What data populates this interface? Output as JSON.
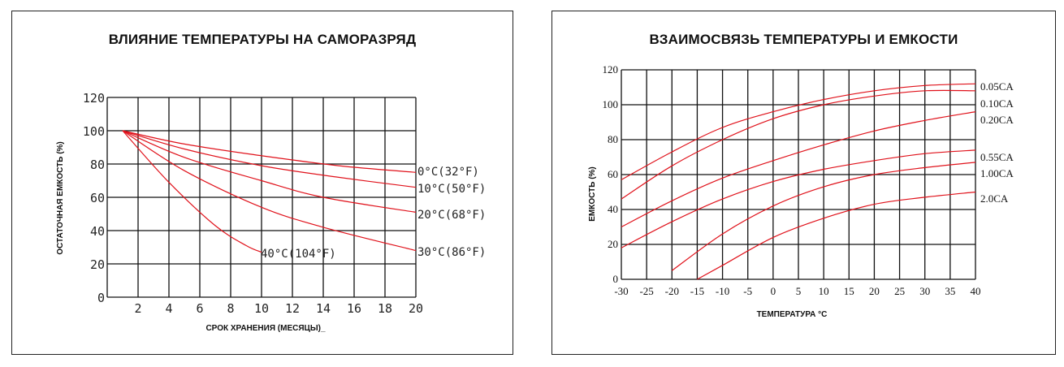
{
  "chart_data": [
    {
      "type": "line",
      "title": "ВЛИЯНИЕ ТЕМПЕРАТУРЫ НА САМОРАЗРЯД",
      "xlabel": "СРОК ХРАНЕНИЯ (МЕСЯЦЫ)_",
      "ylabel": "ОСТАТОЧНАЯ ЕМКОСТЬ (%)",
      "xlim": [
        0,
        20
      ],
      "ylim": [
        0,
        120
      ],
      "xticks": [
        2,
        4,
        6,
        8,
        10,
        12,
        14,
        16,
        18,
        20
      ],
      "yticks": [
        0,
        20,
        40,
        60,
        80,
        100,
        120
      ],
      "grid": true,
      "series": [
        {
          "name": "0°C(32°F)",
          "x": [
            1,
            5,
            10,
            15,
            20
          ],
          "y": [
            100,
            92,
            85,
            79,
            75
          ]
        },
        {
          "name": "10°C(50°F)",
          "x": [
            1,
            5,
            10,
            15,
            20
          ],
          "y": [
            100,
            89,
            79,
            72,
            66
          ]
        },
        {
          "name": "20°C(68°F)",
          "x": [
            1,
            5,
            10,
            14,
            20
          ],
          "y": [
            100,
            84,
            70,
            60,
            51
          ]
        },
        {
          "name": "30°C(86°F)",
          "x": [
            1,
            5,
            10,
            14,
            20
          ],
          "y": [
            100,
            76,
            54,
            42,
            28
          ]
        },
        {
          "name": "40°C(104°F)",
          "x": [
            1,
            4,
            7,
            9,
            10
          ],
          "y": [
            100,
            69,
            43,
            31,
            27
          ]
        }
      ]
    },
    {
      "type": "line",
      "title": "ВЗАИМОСВЯЗЬ ТЕМПЕРАТУРЫ И ЕМКОСТИ",
      "xlabel": "ТЕМПЕРАТУРА °C",
      "ylabel": "ЕМКОСТЬ (%)",
      "xlim": [
        -30,
        40
      ],
      "ylim": [
        0,
        120
      ],
      "xticks": [
        -30,
        -25,
        -20,
        -15,
        -10,
        -5,
        0,
        5,
        10,
        15,
        20,
        25,
        30,
        35,
        40
      ],
      "yticks": [
        0,
        20,
        40,
        60,
        80,
        100,
        120
      ],
      "grid": true,
      "series": [
        {
          "name": "0.05CA",
          "x": [
            -30,
            -20,
            -10,
            0,
            10,
            20,
            30,
            40
          ],
          "y": [
            57,
            73,
            87,
            96,
            103,
            108,
            111,
            112
          ]
        },
        {
          "name": "0.10CA",
          "x": [
            -30,
            -20,
            -10,
            0,
            10,
            20,
            30,
            40
          ],
          "y": [
            46,
            65,
            80,
            92,
            100,
            105,
            108,
            108
          ]
        },
        {
          "name": "0.20CA",
          "x": [
            -30,
            -20,
            -10,
            0,
            10,
            20,
            30,
            40
          ],
          "y": [
            30,
            45,
            58,
            68,
            77,
            85,
            91,
            96
          ]
        },
        {
          "name": "0.55CA",
          "x": [
            -30,
            -20,
            -10,
            0,
            10,
            20,
            30,
            40
          ],
          "y": [
            18,
            33,
            46,
            56,
            63,
            68,
            72,
            74
          ]
        },
        {
          "name": "1.00CA",
          "x": [
            -20,
            -10,
            0,
            10,
            20,
            30,
            40
          ],
          "y": [
            5,
            26,
            42,
            53,
            60,
            64,
            67
          ]
        },
        {
          "name": "2.0CA",
          "x": [
            -15,
            -10,
            0,
            10,
            20,
            30,
            40
          ],
          "y": [
            0,
            8,
            24,
            35,
            43,
            47,
            50
          ]
        }
      ]
    }
  ]
}
